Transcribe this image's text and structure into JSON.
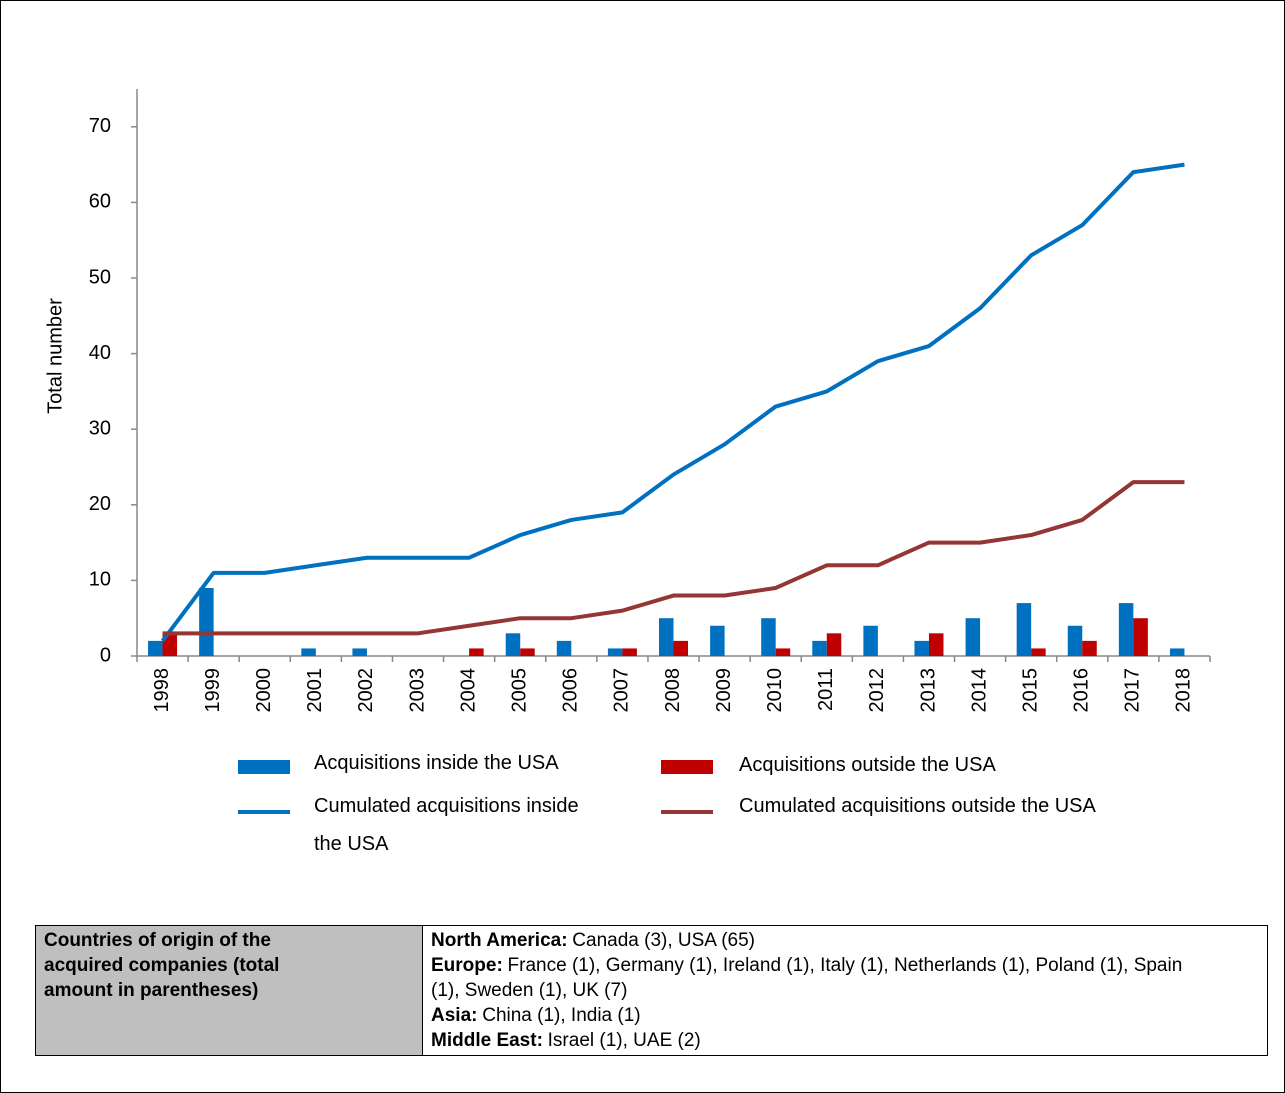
{
  "chart_data": {
    "type": "bar",
    "ylabel": "Total number",
    "categories": [
      "1998",
      "1999",
      "2000",
      "2001",
      "2002",
      "2003",
      "2004",
      "2005",
      "2006",
      "2007",
      "2008",
      "2009",
      "2010",
      "2011",
      "2012",
      "2013",
      "2014",
      "2015",
      "2016",
      "2017",
      "2018"
    ],
    "series": [
      {
        "name": "Acquisitions inside the USA",
        "type": "bar",
        "color": "#0070c0",
        "values": [
          2,
          9,
          0,
          1,
          1,
          0,
          0,
          3,
          2,
          1,
          5,
          4,
          5,
          2,
          4,
          2,
          5,
          7,
          4,
          7,
          1
        ]
      },
      {
        "name": "Acquisitions outside the USA",
        "type": "bar",
        "color": "#c00000",
        "values": [
          3,
          0,
          0,
          0,
          0,
          0,
          1,
          1,
          0,
          1,
          2,
          0,
          1,
          3,
          0,
          3,
          0,
          1,
          2,
          5,
          0
        ]
      },
      {
        "name": "Cumulated acquisitions inside the USA",
        "type": "line",
        "color": "#0070c0",
        "values": [
          2,
          11,
          11,
          12,
          13,
          13,
          13,
          16,
          18,
          19,
          24,
          28,
          33,
          35,
          39,
          41,
          46,
          53,
          57,
          64,
          65
        ]
      },
      {
        "name": "Cumulated acquisitions outside the USA",
        "type": "line",
        "color": "#943634",
        "values": [
          3,
          3,
          3,
          3,
          3,
          3,
          4,
          5,
          5,
          6,
          8,
          8,
          9,
          12,
          12,
          15,
          15,
          16,
          18,
          23,
          23
        ]
      }
    ],
    "ylim": [
      0,
      75
    ],
    "yticks": [
      0,
      10,
      20,
      30,
      40,
      50,
      60,
      70
    ],
    "grid": false
  },
  "table": {
    "header": "Countries of origin of the acquired companies (total amount in parentheses)",
    "rows": [
      {
        "region": "North America:",
        "countries": "Canada (3), USA (65)"
      },
      {
        "region": "Europe:",
        "countries": "France (1), Germany (1), Ireland (1), Italy (1), Netherlands (1), Poland (1), Spain (1), Sweden (1), UK (7)"
      },
      {
        "region": "Asia:",
        "countries": "China (1), India (1)"
      },
      {
        "region": "Middle East:",
        "countries": "Israel (1), UAE (2)"
      }
    ]
  }
}
